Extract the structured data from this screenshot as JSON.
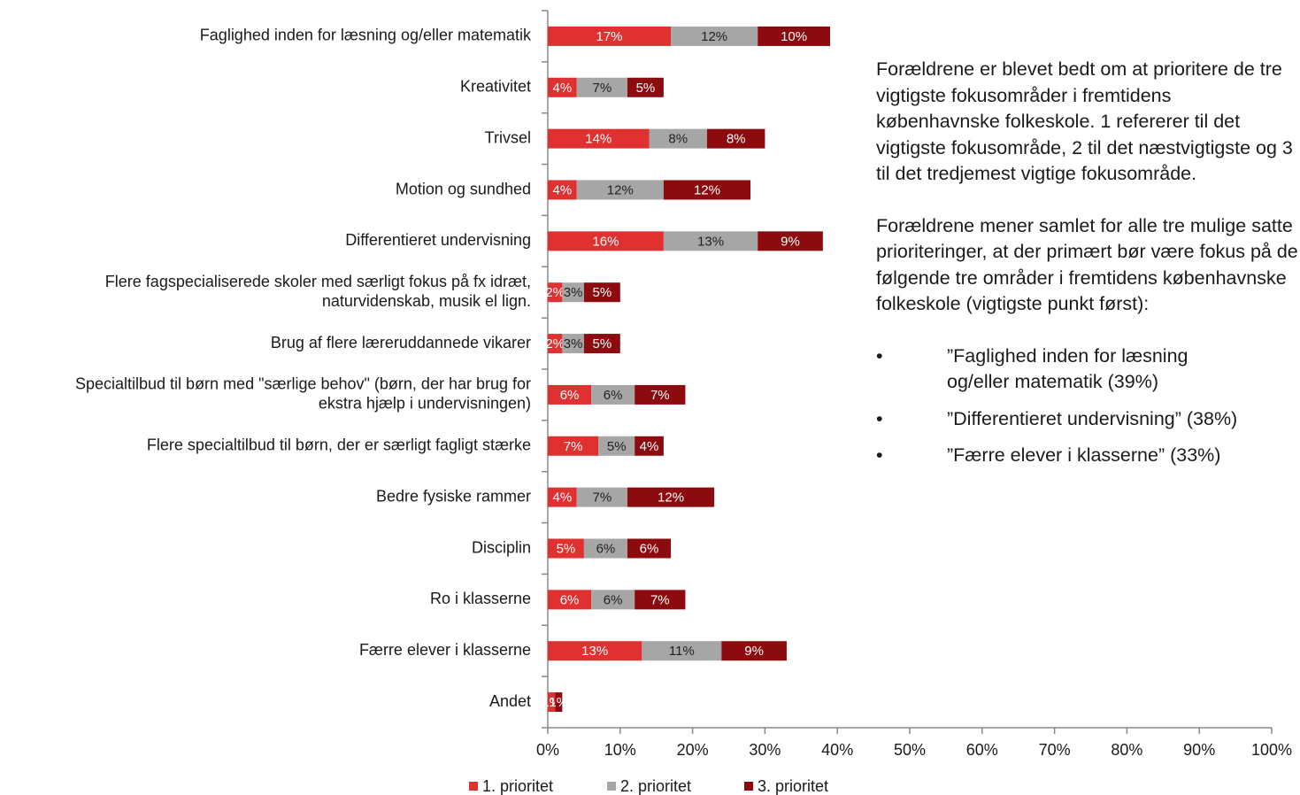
{
  "chart_data": {
    "type": "stacked_barh",
    "categories": [
      [
        "Faglighed inden for læsning og/eller matematik"
      ],
      [
        "Kreativitet"
      ],
      [
        "Trivsel"
      ],
      [
        "Motion og sundhed"
      ],
      [
        "Differentieret undervisning"
      ],
      [
        "Flere fagspecialiserede skoler med særligt fokus på fx idræt,",
        "naturvidenskab, musik el lign."
      ],
      [
        "Brug af flere læreruddannede vikarer"
      ],
      [
        "Specialtilbud til børn med \"særlige behov\" (børn, der har brug for",
        "ekstra hjælp i undervisningen)"
      ],
      [
        "Flere specialtilbud til børn, der er særligt fagligt stærke"
      ],
      [
        "Bedre fysiske rammer"
      ],
      [
        "Disciplin"
      ],
      [
        "Ro i klasserne"
      ],
      [
        "Færre elever i klasserne"
      ],
      [
        "Andet"
      ]
    ],
    "series": [
      {
        "name": "1. prioritet",
        "color": "#e03131",
        "label_color": "#ffffff",
        "values": [
          17,
          4,
          14,
          4,
          16,
          2,
          2,
          6,
          7,
          4,
          5,
          6,
          13,
          1
        ],
        "value_labels": [
          "17%",
          "4%",
          "14%",
          "4%",
          "16%",
          "2%",
          "2%",
          "6%",
          "7%",
          "4%",
          "5%",
          "6%",
          "13%",
          "1%"
        ]
      },
      {
        "name": "2. prioritet",
        "color": "#a6a6a6",
        "label_color": "#222222",
        "values": [
          12,
          7,
          8,
          12,
          13,
          3,
          3,
          6,
          5,
          7,
          6,
          6,
          11,
          0
        ],
        "value_labels": [
          "12%",
          "7%",
          "8%",
          "12%",
          "13%",
          "3%",
          "3%",
          "6%",
          "5%",
          "7%",
          "6%",
          "6%",
          "11%",
          null
        ]
      },
      {
        "name": "3. prioritet",
        "color": "#8c0b0f",
        "label_color": "#ffffff",
        "values": [
          10,
          5,
          8,
          12,
          9,
          5,
          5,
          7,
          4,
          12,
          6,
          7,
          9,
          1
        ],
        "value_labels": [
          "10%",
          "5%",
          "8%",
          "12%",
          "9%",
          "5%",
          "5%",
          "7%",
          "4%",
          "12%",
          "6%",
          "7%",
          "9%",
          "1%"
        ]
      }
    ],
    "xlim": [
      0,
      100
    ],
    "xticks": [
      {
        "value": 0,
        "label": "0%"
      },
      {
        "value": 10,
        "label": "10%"
      },
      {
        "value": 20,
        "label": "20%"
      },
      {
        "value": 30,
        "label": "30%"
      },
      {
        "value": 40,
        "label": "40%"
      },
      {
        "value": 50,
        "label": "50%"
      },
      {
        "value": 60,
        "label": "60%"
      },
      {
        "value": 70,
        "label": "70%"
      },
      {
        "value": 80,
        "label": "80%"
      },
      {
        "value": 90,
        "label": "90%"
      },
      {
        "value": 100,
        "label": "100%"
      }
    ],
    "legend": "bottom",
    "text_box": {
      "paragraphs": [
        "Forældrene er blevet bedt om at prioritere de tre vigtigste fokusområder i fremtidens københavnske folkeskole. 1 refererer til det vigtigste fokusområde, 2 til det næstvigtigste og 3 til det tredjemest vigtige fokusområde.",
        "Forældrene mener samlet for alle tre mulige satte prioriteringer, at der primært bør være fokus på de følgende tre områder i fremtidens københavnske folkeskole (vigtigste punkt først):"
      ],
      "bullets": [
        "”Faglighed inden for læsning og/eller matematik (39%)",
        "”Differentieret undervisning” (38%)",
        "”Færre elever i klasserne” (33%)"
      ]
    }
  }
}
